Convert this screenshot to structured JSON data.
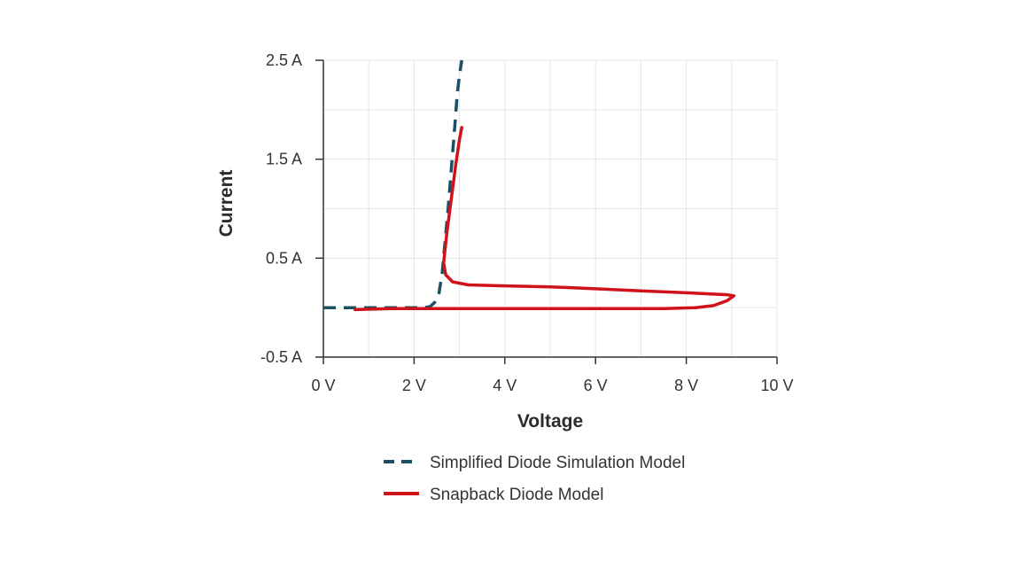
{
  "chart_data": {
    "type": "line",
    "title": "",
    "xlabel": "Voltage",
    "ylabel": "Current",
    "xlim": [
      0,
      10
    ],
    "ylim": [
      -0.5,
      2.5
    ],
    "x_ticks": [
      0,
      2,
      4,
      6,
      8,
      10
    ],
    "x_tick_labels": [
      "0 V",
      "2 V",
      "4 V",
      "6 V",
      "8 V",
      "10 V"
    ],
    "y_ticks": [
      2.5,
      1.5,
      0.5,
      -0.5
    ],
    "y_tick_labels": [
      "2.5 A",
      "1.5 A",
      "0.5 A",
      "-0.5 A"
    ],
    "grid": true,
    "legend_position": "bottom",
    "series": [
      {
        "name": "Simplified Diode Simulation Model",
        "color": "#1b4f63",
        "line_style": "dashed",
        "x": [
          0,
          0.8,
          1.6,
          2.2,
          2.35,
          2.45,
          2.55,
          2.62,
          2.68,
          2.75,
          2.82,
          2.9,
          2.95,
          3.0,
          3.05
        ],
        "y": [
          0,
          0,
          0,
          0,
          0.01,
          0.05,
          0.15,
          0.35,
          0.65,
          1.0,
          1.4,
          1.85,
          2.15,
          2.35,
          2.5
        ]
      },
      {
        "name": "Snapback Diode Model",
        "color": "#d0121b",
        "line_style": "solid",
        "x": [
          0.7,
          1.5,
          2.5,
          3.5,
          4.5,
          5.5,
          6.5,
          7.5,
          8.2,
          8.6,
          8.9,
          9.05,
          8.9,
          8.0,
          7.0,
          6.0,
          5.0,
          4.0,
          3.2,
          2.85,
          2.7,
          2.65,
          2.72,
          2.82,
          2.92,
          3.0,
          3.05
        ],
        "y": [
          -0.02,
          -0.01,
          -0.01,
          -0.01,
          -0.01,
          -0.01,
          -0.01,
          -0.01,
          0.0,
          0.02,
          0.07,
          0.12,
          0.13,
          0.15,
          0.17,
          0.19,
          0.21,
          0.22,
          0.23,
          0.26,
          0.33,
          0.45,
          0.75,
          1.1,
          1.45,
          1.7,
          1.82
        ]
      }
    ]
  }
}
